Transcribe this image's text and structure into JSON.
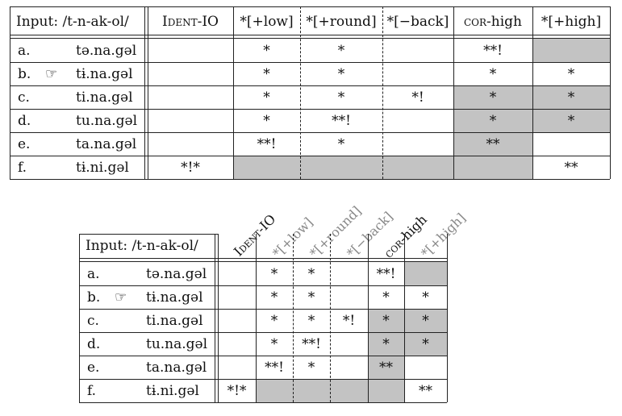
{
  "input": "Input: /t-n-ak-ol/",
  "constraints": [
    {
      "name": "Ident-IO",
      "small_caps": true
    },
    {
      "name": "*[+low]"
    },
    {
      "name": "*[+round]"
    },
    {
      "name": "*[−back]"
    },
    {
      "name": "cor-high",
      "small_caps_prefix": "cor",
      "suffix": "-high"
    },
    {
      "name": "*[+high]"
    }
  ],
  "rows": [
    {
      "label": "a.",
      "winner": false,
      "candidate": "tə.na.gəl",
      "marks": [
        "",
        "*",
        "*",
        "",
        "**!",
        ""
      ]
    },
    {
      "label": "b.",
      "winner": true,
      "pointer": "☞",
      "candidate": "tɨ.na.gəl",
      "marks": [
        "",
        "*",
        "*",
        "",
        "*",
        "*"
      ]
    },
    {
      "label": "c.",
      "winner": false,
      "candidate": "ti.na.gəl",
      "marks": [
        "",
        "*",
        "*",
        "*!",
        "*",
        "*"
      ]
    },
    {
      "label": "d.",
      "winner": false,
      "candidate": "tu.na.gəl",
      "marks": [
        "",
        "*",
        "**!",
        "",
        "*",
        "*"
      ]
    },
    {
      "label": "e.",
      "winner": false,
      "candidate": "ta.na.gəl",
      "marks": [
        "",
        "**!",
        "*",
        "",
        "**",
        ""
      ]
    },
    {
      "label": "f.",
      "winner": false,
      "candidate": "tɨ.ni.gəl",
      "marks": [
        "*!*",
        "",
        "",
        "",
        "",
        "**"
      ]
    }
  ],
  "headers_rotated": {
    "ident": "Ident-IO",
    "low": "*[+low]",
    "round": "*[+round]",
    "back": "*[−back]",
    "cor": "cor-high",
    "high": "*[+high]"
  }
}
